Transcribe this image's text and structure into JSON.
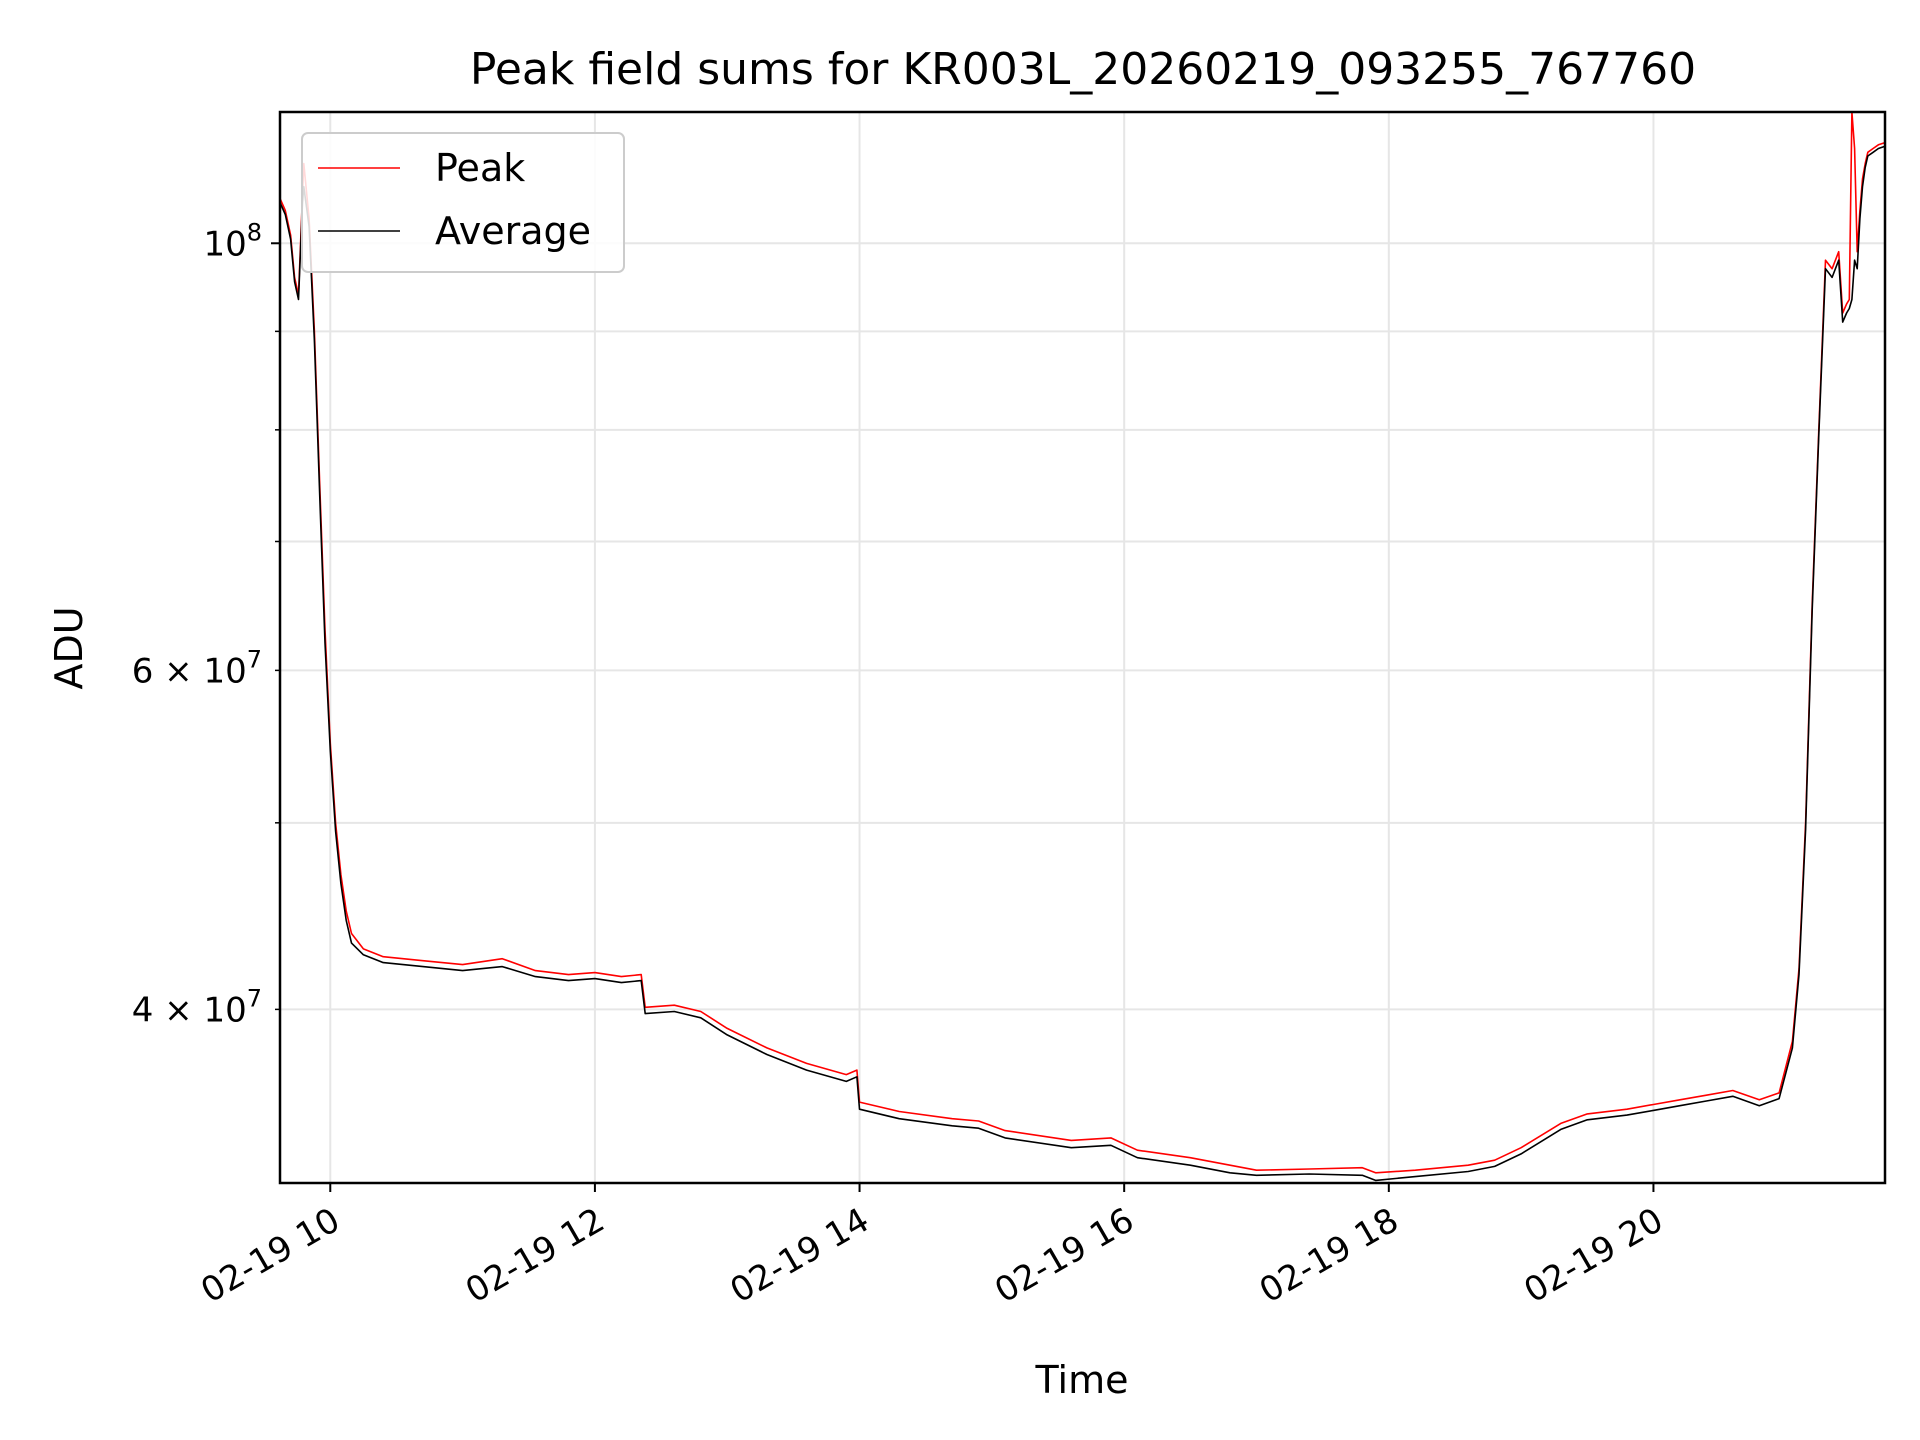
{
  "chart_data": {
    "type": "line",
    "title": "Peak field sums for KR003L_20260219_093255_767760",
    "xlabel": "Time",
    "ylabel": "ADU",
    "yscale": "log",
    "xlim": [
      9.62,
      21.75
    ],
    "ylim": [
      32500000,
      117000000
    ],
    "grid": true,
    "legend_position": "top-left",
    "x_ticks": [
      {
        "value": 10,
        "label": "02-19 10"
      },
      {
        "value": 12,
        "label": "02-19 12"
      },
      {
        "value": 14,
        "label": "02-19 14"
      },
      {
        "value": 16,
        "label": "02-19 16"
      },
      {
        "value": 18,
        "label": "02-19 18"
      },
      {
        "value": 20,
        "label": "02-19 20"
      }
    ],
    "y_major_ticks": [
      {
        "value": 100000000,
        "label_base": "10",
        "label_exp": "8"
      }
    ],
    "y_minor_ticks": [
      {
        "value": 40000000,
        "label_coef": "4 × 10",
        "label_exp": "7"
      },
      {
        "value": 50000000
      },
      {
        "value": 60000000,
        "label_coef": "6 × 10",
        "label_exp": "7"
      },
      {
        "value": 70000000
      },
      {
        "value": 80000000
      },
      {
        "value": 90000000
      }
    ],
    "series": [
      {
        "name": "Peak",
        "color": "#ff0000",
        "x": [
          9.62,
          9.66,
          9.7,
          9.73,
          9.76,
          9.79,
          9.8,
          9.84,
          9.88,
          9.92,
          9.96,
          10.0,
          10.04,
          10.08,
          10.12,
          10.16,
          10.25,
          10.4,
          10.7,
          11.0,
          11.3,
          11.55,
          11.8,
          12.0,
          12.2,
          12.35,
          12.38,
          12.6,
          12.8,
          13.0,
          13.3,
          13.6,
          13.9,
          13.98,
          14.0,
          14.3,
          14.7,
          14.9,
          15.1,
          15.6,
          15.9,
          16.1,
          16.5,
          16.8,
          17.0,
          17.4,
          17.8,
          17.9,
          18.2,
          18.6,
          18.8,
          19.0,
          19.3,
          19.5,
          19.8,
          20.0,
          20.2,
          20.4,
          20.6,
          20.8,
          20.95,
          21.05,
          21.1,
          21.15,
          21.2,
          21.25,
          21.3,
          21.35,
          21.4,
          21.43,
          21.46,
          21.48,
          21.5,
          21.52,
          21.54,
          21.56,
          21.58,
          21.6,
          21.62,
          21.66,
          21.7,
          21.75
        ],
        "y": [
          105500000,
          104000000,
          101000000,
          96000000,
          94000000,
          106000000,
          110000000,
          103000000,
          90000000,
          75000000,
          63000000,
          55000000,
          50000000,
          47000000,
          45000000,
          43800000,
          43000000,
          42600000,
          42400000,
          42200000,
          42500000,
          41900000,
          41700000,
          41800000,
          41600000,
          41700000,
          40100000,
          40200000,
          39900000,
          39100000,
          38200000,
          37500000,
          37000000,
          37200000,
          35800000,
          35400000,
          35100000,
          35000000,
          34600000,
          34200000,
          34300000,
          33800000,
          33500000,
          33200000,
          33000000,
          33050000,
          33100000,
          32900000,
          33000000,
          33200000,
          33400000,
          33900000,
          34900000,
          35300000,
          35500000,
          35700000,
          35900000,
          36100000,
          36300000,
          35900000,
          36200000,
          38500000,
          42000000,
          50000000,
          65000000,
          80000000,
          98000000,
          97000000,
          99000000,
          92000000,
          93000000,
          93500000,
          117000000,
          112000000,
          99000000,
          104000000,
          108000000,
          110000000,
          111500000,
          112000000,
          112500000,
          112800000
        ]
      },
      {
        "name": "Average",
        "color": "#000000",
        "x": [
          9.62,
          9.66,
          9.7,
          9.73,
          9.76,
          9.79,
          9.8,
          9.84,
          9.88,
          9.92,
          9.96,
          10.0,
          10.04,
          10.08,
          10.12,
          10.16,
          10.25,
          10.4,
          10.7,
          11.0,
          11.3,
          11.55,
          11.8,
          12.0,
          12.2,
          12.35,
          12.38,
          12.6,
          12.8,
          13.0,
          13.3,
          13.6,
          13.9,
          13.98,
          14.0,
          14.3,
          14.7,
          14.9,
          15.1,
          15.6,
          15.9,
          16.1,
          16.5,
          16.8,
          17.0,
          17.4,
          17.8,
          17.9,
          18.2,
          18.6,
          18.8,
          19.0,
          19.3,
          19.5,
          19.8,
          20.0,
          20.2,
          20.4,
          20.6,
          20.8,
          20.95,
          21.05,
          21.1,
          21.15,
          21.2,
          21.25,
          21.3,
          21.35,
          21.4,
          21.43,
          21.46,
          21.48,
          21.5,
          21.52,
          21.54,
          21.56,
          21.58,
          21.6,
          21.62,
          21.66,
          21.7,
          21.75
        ],
        "y": [
          105000000,
          103500000,
          100500000,
          95500000,
          93500000,
          105000000,
          107000000,
          102000000,
          89000000,
          74000000,
          62000000,
          54500000,
          49500000,
          46500000,
          44500000,
          43300000,
          42700000,
          42300000,
          42100000,
          41900000,
          42100000,
          41600000,
          41400000,
          41500000,
          41300000,
          41400000,
          39800000,
          39900000,
          39600000,
          38800000,
          37900000,
          37200000,
          36700000,
          36900000,
          35500000,
          35100000,
          34800000,
          34700000,
          34300000,
          33900000,
          34000000,
          33500000,
          33200000,
          32900000,
          32800000,
          32850000,
          32800000,
          32600000,
          32750000,
          32950000,
          33150000,
          33650000,
          34650000,
          35050000,
          35250000,
          35450000,
          35650000,
          35850000,
          36050000,
          35650000,
          35950000,
          38200000,
          41700000,
          49600000,
          64500000,
          79500000,
          97000000,
          96000000,
          98000000,
          91000000,
          92000000,
          92500000,
          93500000,
          98000000,
          97000000,
          103000000,
          107000000,
          109500000,
          111000000,
          111500000,
          112000000,
          112300000
        ]
      }
    ]
  }
}
